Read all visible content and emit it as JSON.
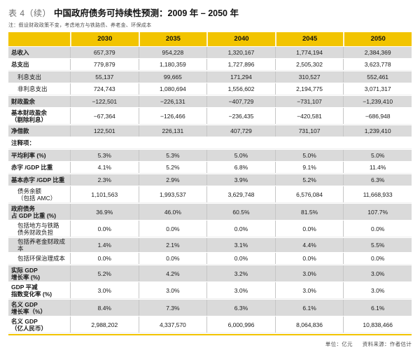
{
  "page": {
    "title_prefix": "表 4（续）",
    "title": "中国政府债务可持续性预测：2009 年 – 2050 年",
    "note": "注：假设财政政策不变，考虑地方与铁路债、养老金、环保成本",
    "footer_unit": "单位：亿元",
    "footer_source": "资料来源：作者估计"
  },
  "colors": {
    "header_bg": "#F2C400",
    "stripe_gray": "#DADADA",
    "accent_line": "#F2C400"
  },
  "table": {
    "columns": [
      "2030",
      "2035",
      "2040",
      "2045",
      "2050"
    ],
    "rows": [
      {
        "label": "总收入",
        "values": [
          "657,379",
          "954,228",
          "1,320,167",
          "1,774,194",
          "2,384,369"
        ],
        "bold": true,
        "indent": false,
        "shade": true
      },
      {
        "label": "总支出",
        "values": [
          "779,879",
          "1,180,359",
          "1,727,896",
          "2,505,302",
          "3,623,778"
        ],
        "bold": true,
        "indent": false,
        "shade": false
      },
      {
        "label": "利息支出",
        "values": [
          "55,137",
          "99,665",
          "171,294",
          "310,527",
          "552,461"
        ],
        "bold": false,
        "indent": true,
        "shade": true
      },
      {
        "label": "非利息支出",
        "values": [
          "724,743",
          "1,080,694",
          "1,556,602",
          "2,194,775",
          "3,071,317"
        ],
        "bold": false,
        "indent": true,
        "shade": false
      },
      {
        "label": "财政盈余",
        "values": [
          "−122,501",
          "−226,131",
          "−407,729",
          "−731,107",
          "−1,239,410"
        ],
        "bold": true,
        "indent": false,
        "shade": true
      },
      {
        "label": "基本财政盈余\n（剔除利息）",
        "values": [
          "−67,364",
          "−126,466",
          "−236,435",
          "−420,581",
          "−686,948"
        ],
        "bold": true,
        "indent": false,
        "shade": false
      },
      {
        "label": "净借款",
        "values": [
          "122,501",
          "226,131",
          "407,729",
          "731,107",
          "1,239,410"
        ],
        "bold": true,
        "indent": false,
        "shade": true
      },
      {
        "label": "注释项：",
        "values": [
          "",
          "",
          "",
          "",
          ""
        ],
        "bold": true,
        "indent": false,
        "shade": false,
        "section": true
      },
      {
        "label": "平均利率 (%)",
        "values": [
          "5.3%",
          "5.3%",
          "5.0%",
          "5.0%",
          "5.0%"
        ],
        "bold": true,
        "indent": false,
        "shade": true
      },
      {
        "label": "赤字 /GDP 比重",
        "values": [
          "4.1%",
          "5.2%",
          "6.8%",
          "9.1%",
          "11.4%"
        ],
        "bold": true,
        "indent": false,
        "shade": false
      },
      {
        "label": "基本赤字 /GDP 比重",
        "values": [
          "2.3%",
          "2.9%",
          "3.9%",
          "5.2%",
          "6.3%"
        ],
        "bold": true,
        "indent": false,
        "shade": true
      },
      {
        "label": "债务余额\n（包括 AMC）",
        "values": [
          "1,101,563",
          "1,993,537",
          "3,629,748",
          "6,576,084",
          "11,668,933"
        ],
        "bold": false,
        "indent": true,
        "shade": false
      },
      {
        "label": "政府债务\n占 GDP 比重 (%)",
        "values": [
          "36.9%",
          "46.0%",
          "60.5%",
          "81.5%",
          "107.7%"
        ],
        "bold": true,
        "indent": false,
        "shade": true
      },
      {
        "label": "包括地方与铁路\n债务财政负担",
        "values": [
          "0.0%",
          "0.0%",
          "0.0%",
          "0.0%",
          "0.0%"
        ],
        "bold": false,
        "indent": true,
        "shade": false
      },
      {
        "label": "包括养老金财政成本",
        "values": [
          "1.4%",
          "2.1%",
          "3.1%",
          "4.4%",
          "5.5%"
        ],
        "bold": false,
        "indent": true,
        "shade": true
      },
      {
        "label": "包括环保治理成本",
        "values": [
          "0.0%",
          "0.0%",
          "0.0%",
          "0.0%",
          "0.0%"
        ],
        "bold": false,
        "indent": true,
        "shade": false
      },
      {
        "label": "实际 GDP\n增长率 (%)",
        "values": [
          "5.2%",
          "4.2%",
          "3.2%",
          "3.0%",
          "3.0%"
        ],
        "bold": true,
        "indent": false,
        "shade": true
      },
      {
        "label": "GDP 平减\n指数变化率 (%)",
        "values": [
          "3.0%",
          "3.0%",
          "3.0%",
          "3.0%",
          "3.0%"
        ],
        "bold": true,
        "indent": false,
        "shade": false
      },
      {
        "label": "名义 GDP\n增长率（%）",
        "values": [
          "8.4%",
          "7.3%",
          "6.3%",
          "6.1%",
          "6.1%"
        ],
        "bold": true,
        "indent": false,
        "shade": true
      },
      {
        "label": "名义 GDP\n（亿人民币）",
        "values": [
          "2,988,202",
          "4,337,570",
          "6,000,996",
          "8,064,836",
          "10,838,466"
        ],
        "bold": true,
        "indent": false,
        "shade": false
      }
    ]
  }
}
